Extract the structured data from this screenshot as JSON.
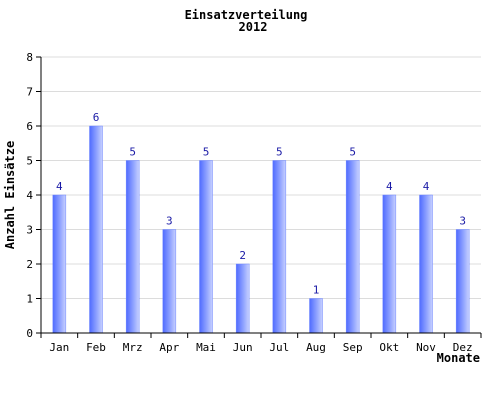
{
  "chart_data": {
    "type": "bar",
    "title": "Einsatzverteilung",
    "subtitle": "2012",
    "xlabel": "Monate",
    "ylabel": "Anzahl Einsätze",
    "categories": [
      "Jan",
      "Feb",
      "Mrz",
      "Apr",
      "Mai",
      "Jun",
      "Jul",
      "Aug",
      "Sep",
      "Okt",
      "Nov",
      "Dez"
    ],
    "values": [
      4,
      6,
      5,
      3,
      5,
      2,
      5,
      1,
      5,
      4,
      4,
      3
    ],
    "ylim": [
      0,
      8
    ],
    "yticks": [
      "0",
      "1",
      "2",
      "3",
      "4",
      "5",
      "6",
      "7",
      "8"
    ],
    "grid": true,
    "bar_color": "#6f86ff",
    "data_label_color": "#1a1aa6"
  }
}
